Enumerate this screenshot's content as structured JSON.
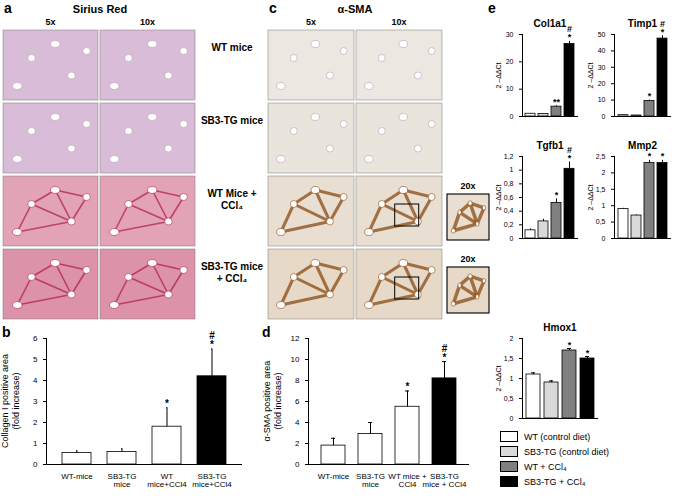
{
  "image_panels": [
    {
      "panel_label": "a",
      "title": "Sirius Red",
      "columns": [
        "5x",
        "10x"
      ],
      "inset_labels": [
        null,
        null,
        null,
        null
      ]
    },
    {
      "panel_label": "c",
      "title": "α-SMA",
      "columns": [
        "5x",
        "10x"
      ],
      "inset_labels": [
        null,
        null,
        "20x",
        "20x"
      ]
    }
  ],
  "row_labels": [
    "WT mice",
    "SB3-TG mice",
    "WT Mice + CCl₄",
    "SB3-TG mice + CCl₄"
  ],
  "legend_entries": [
    {
      "name": "WT (control diet)",
      "color": "#ffffff"
    },
    {
      "name": "SB3-TG (control diet)",
      "color": "#d9d9d9"
    },
    {
      "name": "WT + CCl₄",
      "color": "#808080"
    },
    {
      "name": "SB3-TG + CCl₄",
      "color": "#000000"
    }
  ],
  "chart_data": [
    {
      "type": "bar",
      "panel_label": "b",
      "y_label": "Collagen I positive area\n(fold increase)",
      "categories": [
        "WT-mice",
        "SB3-TG mice",
        "WT mice+CCl4",
        "SB3-TG mice+CCl4"
      ],
      "values": [
        0.55,
        0.6,
        1.8,
        4.2
      ],
      "errors": [
        0.1,
        0.15,
        0.9,
        1.3
      ],
      "annotations": [
        [],
        [],
        [
          "*"
        ],
        [
          "#",
          "*"
        ]
      ],
      "colors": [
        "#ffffff",
        "#ffffff",
        "#ffffff",
        "#000000"
      ],
      "ylim": [
        0,
        6
      ],
      "yticks": [
        0,
        1,
        2,
        3,
        4,
        5,
        6
      ],
      "grid": false
    },
    {
      "type": "bar",
      "panel_label": "d",
      "y_label": "α-SMA positive area\n(fold increase)",
      "categories": [
        "WT-mice",
        "SB3-TG mice",
        "WT mice + CCl4",
        "SB3-TG mice + CCl4"
      ],
      "values": [
        1.8,
        2.9,
        5.5,
        8.2
      ],
      "errors": [
        0.7,
        1.1,
        1.5,
        1.6
      ],
      "annotations": [
        [],
        [],
        [
          "*"
        ],
        [
          "#",
          "*"
        ]
      ],
      "colors": [
        "#ffffff",
        "#ffffff",
        "#ffffff",
        "#000000"
      ],
      "ylim": [
        0,
        12
      ],
      "yticks": [
        0,
        2,
        4,
        6,
        8,
        10,
        12
      ],
      "grid": false
    },
    {
      "type": "bar",
      "panel_label": "e",
      "title": "Col1a1",
      "y_label": "2 –ΔΔCt",
      "categories": [
        null,
        null,
        null,
        null
      ],
      "tick_labels": "y",
      "values": [
        1.0,
        0.9,
        3.6,
        26.5
      ],
      "errors": [
        0.1,
        0.1,
        0.3,
        1.0
      ],
      "annotations": [
        [],
        [],
        [
          "**"
        ],
        [
          "#",
          "*"
        ]
      ],
      "colors": [
        "#ffffff",
        "#d9d9d9",
        "#808080",
        "#000000"
      ],
      "ylim": [
        0,
        30
      ],
      "yticks": [
        0,
        10,
        20,
        30
      ],
      "grid": false
    },
    {
      "type": "bar",
      "title": "Timp1",
      "y_label": "2 –ΔΔCt",
      "categories": [
        null,
        null,
        null,
        null
      ],
      "tick_labels": "y",
      "values": [
        0.8,
        0.6,
        9.5,
        47.5
      ],
      "errors": [
        0.1,
        0.1,
        0.5,
        1.8
      ],
      "annotations": [
        [],
        [],
        [
          "*"
        ],
        [
          "#",
          "*"
        ]
      ],
      "colors": [
        "#ffffff",
        "#d9d9d9",
        "#808080",
        "#000000"
      ],
      "ylim": [
        0,
        50
      ],
      "yticks": [
        0,
        10,
        20,
        30,
        40,
        50
      ],
      "grid": false
    },
    {
      "type": "bar",
      "title": "Tgfb1",
      "y_label": "2 –ΔΔCt",
      "categories": [
        null,
        null,
        null,
        null
      ],
      "tick_labels": "y",
      "values": [
        0.12,
        0.25,
        0.52,
        1.02
      ],
      "errors": [
        0.02,
        0.03,
        0.06,
        0.1
      ],
      "annotations": [
        [],
        [],
        [
          "*"
        ],
        [
          "#",
          "*"
        ]
      ],
      "colors": [
        "#ffffff",
        "#d9d9d9",
        "#808080",
        "#000000"
      ],
      "ylim": [
        0,
        1.2
      ],
      "yticks": [
        0,
        {
          "value": 0.2,
          "label": "0,2"
        },
        {
          "value": 0.4,
          "label": "0,4"
        },
        {
          "value": 0.6,
          "label": "0,6"
        },
        {
          "value": 0.8,
          "label": "0,8"
        },
        1,
        {
          "value": 1.2,
          "label": "1,2"
        }
      ],
      "grid": false
    },
    {
      "type": "bar",
      "title": "Mmp2",
      "y_label": "2 –ΔΔCt",
      "categories": [
        null,
        null,
        null,
        null
      ],
      "tick_labels": "y",
      "values": [
        0.9,
        0.7,
        2.3,
        2.3
      ],
      "errors": [
        0.02,
        0.02,
        0.08,
        0.08
      ],
      "annotations": [
        [],
        [],
        [
          "*"
        ],
        [
          "*"
        ]
      ],
      "colors": [
        "#ffffff",
        "#d9d9d9",
        "#808080",
        "#000000"
      ],
      "ylim": [
        0,
        2.5
      ],
      "yticks": [
        0,
        {
          "value": 0.5,
          "label": "0,5"
        },
        1,
        {
          "value": 1.5,
          "label": "1,5"
        },
        2,
        {
          "value": 2.5,
          "label": "2,5"
        }
      ],
      "grid": false
    },
    {
      "type": "bar",
      "title": "Hmox1",
      "y_label": "2 –ΔΔCt",
      "categories": [
        null,
        null,
        null,
        null
      ],
      "tick_labels": "y",
      "values": [
        1.1,
        0.9,
        1.7,
        1.5
      ],
      "errors": [
        0.04,
        0.04,
        0.05,
        0.05
      ],
      "annotations": [
        [],
        [],
        [
          "*"
        ],
        [
          "*"
        ]
      ],
      "colors": [
        "#ffffff",
        "#d9d9d9",
        "#808080",
        "#000000"
      ],
      "ylim": [
        0,
        2
      ],
      "yticks": [
        0,
        {
          "value": 0.5,
          "label": "0,5"
        },
        1,
        {
          "value": 1.5,
          "label": "1,5"
        },
        2
      ],
      "grid": false
    }
  ]
}
